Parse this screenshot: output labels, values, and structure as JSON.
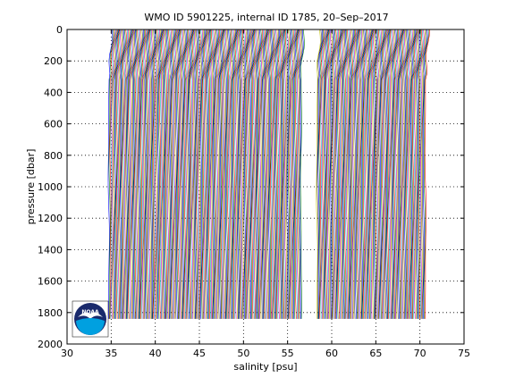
{
  "chart_data": {
    "type": "line",
    "title": "WMO ID 5901225, internal ID 1785, 20–Sep–2017",
    "xlabel": "salinity [psu]",
    "ylabel": "pressure [dbar]",
    "xlim": [
      30,
      75
    ],
    "ylim": [
      0,
      2000
    ],
    "y_reversed": true,
    "grid": "dotted",
    "x_ticks": [
      "30",
      "35",
      "40",
      "45",
      "50",
      "55",
      "60",
      "65",
      "70",
      "75"
    ],
    "y_ticks": [
      "0",
      "200",
      "400",
      "600",
      "800",
      "1000",
      "1200",
      "1400",
      "1600",
      "1800",
      "2000"
    ],
    "series_generation": {
      "description_hidden": true,
      "profile_count": 360,
      "profile_offset_psu": 0.1,
      "base_salinity_psu": 34.75,
      "max_pressure_dbar": 1840,
      "gap_start_psu": 56.6,
      "gap_end_psu": 58.3,
      "colors": [
        "#0000ff",
        "#008000",
        "#ff0000",
        "#00bfbf",
        "#bf00bf",
        "#bfbf00",
        "#404040"
      ]
    },
    "logo_colors": {
      "outer": "#ffffff",
      "ring": "#1a2a6c",
      "top": "#1a2a6c",
      "bottom": "#00a0e0",
      "text": "#ffffff"
    }
  }
}
